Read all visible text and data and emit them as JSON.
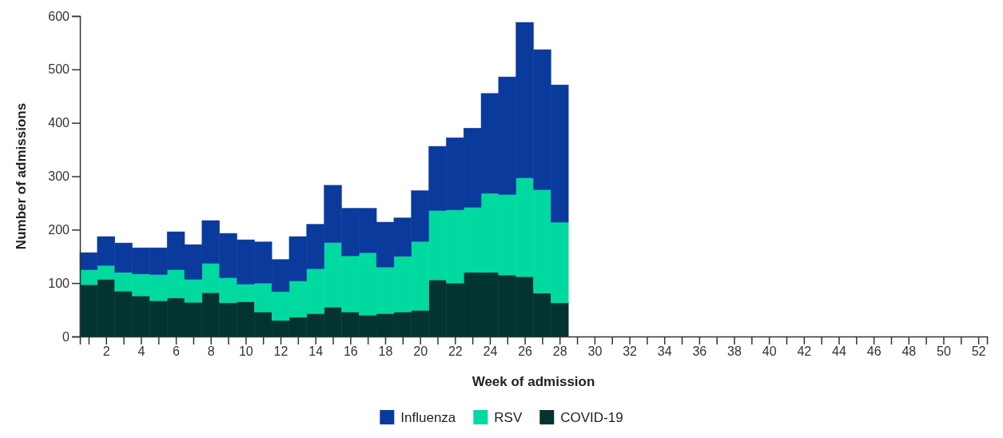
{
  "chart_data": {
    "type": "bar",
    "stacked": true,
    "xlabel": "Week of admission",
    "ylabel": "Number of admissions",
    "x": [
      1,
      2,
      3,
      4,
      5,
      6,
      7,
      8,
      9,
      10,
      11,
      12,
      13,
      14,
      15,
      16,
      17,
      18,
      19,
      20,
      21,
      22,
      23,
      24,
      25,
      26,
      27,
      28
    ],
    "series": [
      {
        "name": "COVID-19",
        "color": "#033432",
        "values": [
          97,
          107,
          85,
          76,
          67,
          72,
          64,
          82,
          63,
          65,
          46,
          30,
          36,
          43,
          55,
          46,
          40,
          43,
          46,
          49,
          106,
          100,
          120,
          120,
          115,
          112,
          81,
          63
        ]
      },
      {
        "name": "RSV",
        "color": "#00d9a0",
        "values": [
          28,
          26,
          35,
          41,
          49,
          53,
          43,
          55,
          47,
          33,
          54,
          54,
          68,
          84,
          121,
          105,
          117,
          87,
          104,
          129,
          130,
          137,
          122,
          148,
          151,
          185,
          194,
          151
        ]
      },
      {
        "name": "Influenza",
        "color": "#0a3a9c",
        "values": [
          32,
          54,
          55,
          49,
          50,
          71,
          65,
          80,
          83,
          83,
          77,
          60,
          83,
          83,
          107,
          89,
          83,
          84,
          72,
          95,
          120,
          135,
          148,
          187,
          220,
          291,
          262,
          257
        ]
      }
    ],
    "xlim": [
      0.5,
      52.5
    ],
    "xticks": [
      {
        "value": 1,
        "label": null
      },
      2,
      {
        "value": 3,
        "label": null
      },
      4,
      {
        "value": 5,
        "label": null
      },
      6,
      {
        "value": 7,
        "label": null
      },
      8,
      {
        "value": 9,
        "label": null
      },
      10,
      {
        "value": 11,
        "label": null
      },
      12,
      {
        "value": 13,
        "label": null
      },
      14,
      {
        "value": 15,
        "label": null
      },
      16,
      {
        "value": 17,
        "label": null
      },
      18,
      {
        "value": 19,
        "label": null
      },
      20,
      {
        "value": 21,
        "label": null
      },
      22,
      {
        "value": 23,
        "label": null
      },
      24,
      {
        "value": 25,
        "label": null
      },
      26,
      {
        "value": 27,
        "label": null
      },
      28,
      {
        "value": 29,
        "label": null
      },
      30,
      {
        "value": 31,
        "label": null
      },
      32,
      {
        "value": 33,
        "label": null
      },
      34,
      {
        "value": 35,
        "label": null
      },
      36,
      {
        "value": 37,
        "label": null
      },
      38,
      {
        "value": 39,
        "label": null
      },
      40,
      {
        "value": 41,
        "label": null
      },
      42,
      {
        "value": 43,
        "label": null
      },
      44,
      {
        "value": 45,
        "label": null
      },
      46,
      {
        "value": 47,
        "label": null
      },
      48,
      {
        "value": 49,
        "label": null
      },
      50,
      {
        "value": 51,
        "label": null
      },
      52
    ],
    "ylim": [
      0,
      600
    ],
    "yticks": [
      0,
      100,
      200,
      300,
      400,
      500,
      600
    ],
    "grid": false,
    "legend": "bottom"
  }
}
